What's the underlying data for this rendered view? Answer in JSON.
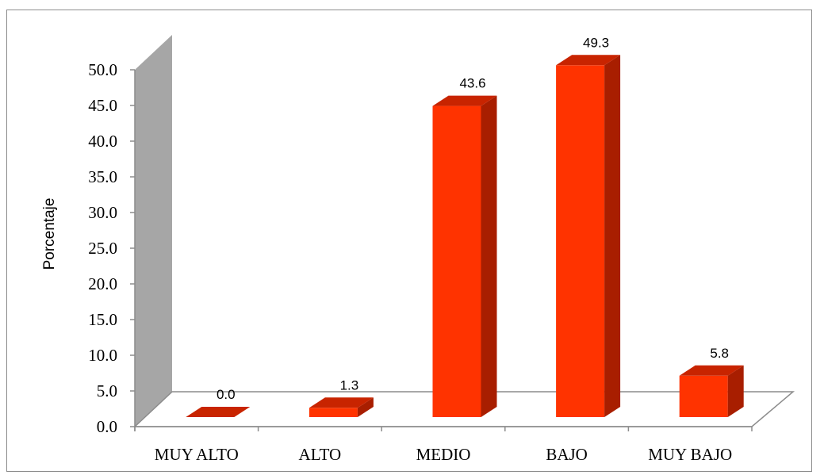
{
  "chart_data": {
    "type": "bar",
    "title": "",
    "xlabel": "",
    "ylabel": "Porcentaje",
    "ylim": [
      0,
      50
    ],
    "yticks": [
      "0.0",
      "5.0",
      "10.0",
      "15.0",
      "20.0",
      "25.0",
      "30.0",
      "35.0",
      "40.0",
      "45.0",
      "50.0"
    ],
    "categories": [
      "MUY ALTO",
      "ALTO",
      "MEDIO",
      "BAJO",
      "MUY BAJO"
    ],
    "values": [
      0.0,
      1.3,
      43.6,
      49.3,
      5.8
    ],
    "value_labels": [
      "0.0",
      "1.3",
      "43.6",
      "49.3",
      "5.8"
    ],
    "style": "3d-column",
    "colors": {
      "bar_front": "#ff3300",
      "bar_side": "#a81e00",
      "bar_top": "#c82400",
      "wall": "#a6a6a6",
      "axis": "#8c8c8c"
    }
  }
}
